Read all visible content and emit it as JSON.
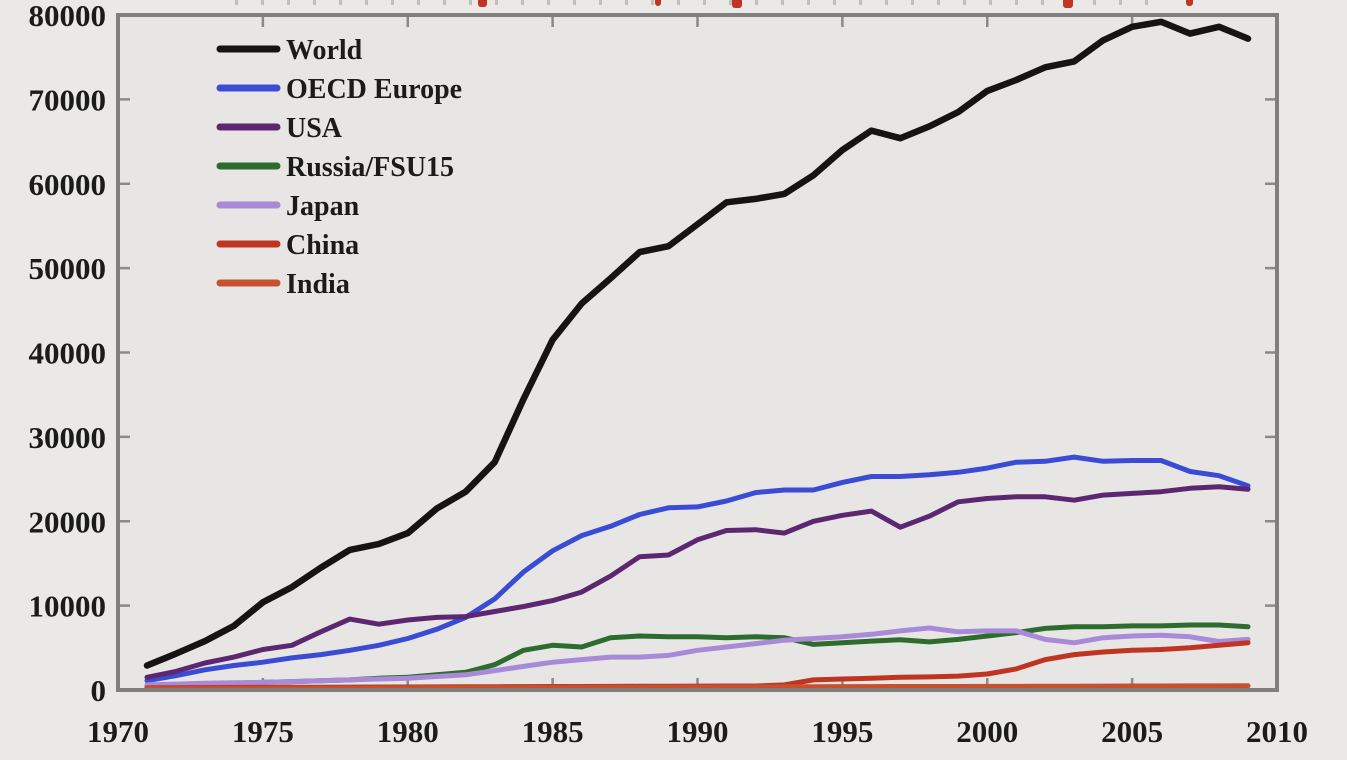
{
  "figure": {
    "background": "#eae9e7",
    "plot_background": "#e7e6e4",
    "border_color": "#7f7f7f",
    "tick_color": "#8a8a8a",
    "text_color": "#1b1b1b",
    "cropped_red_title_visible": true
  },
  "chart_data": {
    "type": "line",
    "title": "",
    "xlabel": "",
    "ylabel": "",
    "grid": false,
    "legend_position": "top-left-inside",
    "x_range": [
      1970,
      2010
    ],
    "y_range": [
      0,
      80000
    ],
    "x_ticks": [
      1970,
      1975,
      1980,
      1985,
      1990,
      1995,
      2000,
      2005,
      2010
    ],
    "y_ticks": [
      0,
      10000,
      20000,
      30000,
      40000,
      50000,
      60000,
      70000,
      80000
    ],
    "x": [
      1971,
      1972,
      1973,
      1974,
      1975,
      1976,
      1977,
      1978,
      1979,
      1980,
      1981,
      1982,
      1983,
      1984,
      1985,
      1986,
      1987,
      1988,
      1989,
      1990,
      1991,
      1992,
      1993,
      1994,
      1995,
      1996,
      1997,
      1998,
      1999,
      2000,
      2001,
      2002,
      2003,
      2004,
      2005,
      2006,
      2007,
      2008,
      2009
    ],
    "series": [
      {
        "name": "World",
        "color": "#141414",
        "line_width": 6.5,
        "values": [
          2900,
          4300,
          5800,
          7600,
          10400,
          12200,
          14500,
          16600,
          17300,
          18600,
          21500,
          23500,
          27000,
          34500,
          41500,
          45800,
          48800,
          51900,
          52600,
          55200,
          57800,
          58200,
          58800,
          61000,
          64000,
          66300,
          65400,
          66800,
          68500,
          71000,
          72300,
          73800,
          74500,
          77000,
          78600,
          79200,
          77800,
          78600,
          77200
        ]
      },
      {
        "name": "OECD Europe",
        "color": "#3a4cd4",
        "line_width": 5,
        "values": [
          1100,
          1700,
          2400,
          2900,
          3300,
          3800,
          4200,
          4700,
          5300,
          6100,
          7200,
          8600,
          10800,
          14000,
          16500,
          18300,
          19400,
          20800,
          21600,
          21700,
          22400,
          23400,
          23700,
          23700,
          24600,
          25300,
          25300,
          25500,
          25800,
          26300,
          27000,
          27100,
          27600,
          27100,
          27200,
          27200,
          25900,
          25400,
          24200
        ]
      },
      {
        "name": "USA",
        "color": "#5c2770",
        "line_width": 5,
        "values": [
          1500,
          2200,
          3200,
          3900,
          4800,
          5300,
          6900,
          8400,
          7800,
          8300,
          8600,
          8700,
          9300,
          9900,
          10600,
          11600,
          13500,
          15800,
          16000,
          17800,
          18900,
          19000,
          18600,
          20000,
          20700,
          21200,
          19300,
          20600,
          22300,
          22700,
          22900,
          22900,
          22500,
          23100,
          23300,
          23500,
          23900,
          24100,
          23800
        ]
      },
      {
        "name": "Russia/FSU15",
        "color": "#2e6b2e",
        "line_width": 5,
        "values": [
          400,
          500,
          700,
          800,
          900,
          1000,
          1100,
          1200,
          1400,
          1500,
          1800,
          2100,
          3000,
          4700,
          5300,
          5100,
          6200,
          6400,
          6300,
          6300,
          6200,
          6300,
          6200,
          5400,
          5600,
          5800,
          5950,
          5700,
          6000,
          6400,
          6800,
          7300,
          7500,
          7500,
          7600,
          7600,
          7700,
          7700,
          7500
        ]
      },
      {
        "name": "Japan",
        "color": "#a98ad8",
        "line_width": 5,
        "values": [
          600,
          700,
          800,
          850,
          900,
          1000,
          1100,
          1200,
          1300,
          1400,
          1600,
          1800,
          2300,
          2800,
          3300,
          3600,
          3900,
          3900,
          4100,
          4700,
          5100,
          5500,
          5900,
          6100,
          6300,
          6600,
          7000,
          7350,
          6900,
          7000,
          7000,
          6000,
          5600,
          6200,
          6400,
          6500,
          6300,
          5750,
          6000
        ]
      },
      {
        "name": "China",
        "color": "#bf3522",
        "line_width": 5,
        "values": [
          250,
          270,
          290,
          300,
          310,
          320,
          330,
          340,
          350,
          360,
          370,
          380,
          390,
          400,
          410,
          420,
          430,
          440,
          450,
          460,
          470,
          480,
          600,
          1200,
          1300,
          1400,
          1500,
          1550,
          1650,
          1900,
          2500,
          3600,
          4200,
          4500,
          4700,
          4800,
          5000,
          5300,
          5600
        ]
      },
      {
        "name": "India",
        "color": "#c5512f",
        "line_width": 5,
        "values": [
          150,
          160,
          170,
          180,
          200,
          210,
          220,
          230,
          240,
          250,
          260,
          270,
          280,
          290,
          300,
          310,
          320,
          330,
          340,
          350,
          360,
          370,
          380,
          390,
          400,
          405,
          410,
          415,
          420,
          425,
          430,
          440,
          450,
          460,
          470,
          480,
          485,
          490,
          500
        ]
      }
    ]
  }
}
